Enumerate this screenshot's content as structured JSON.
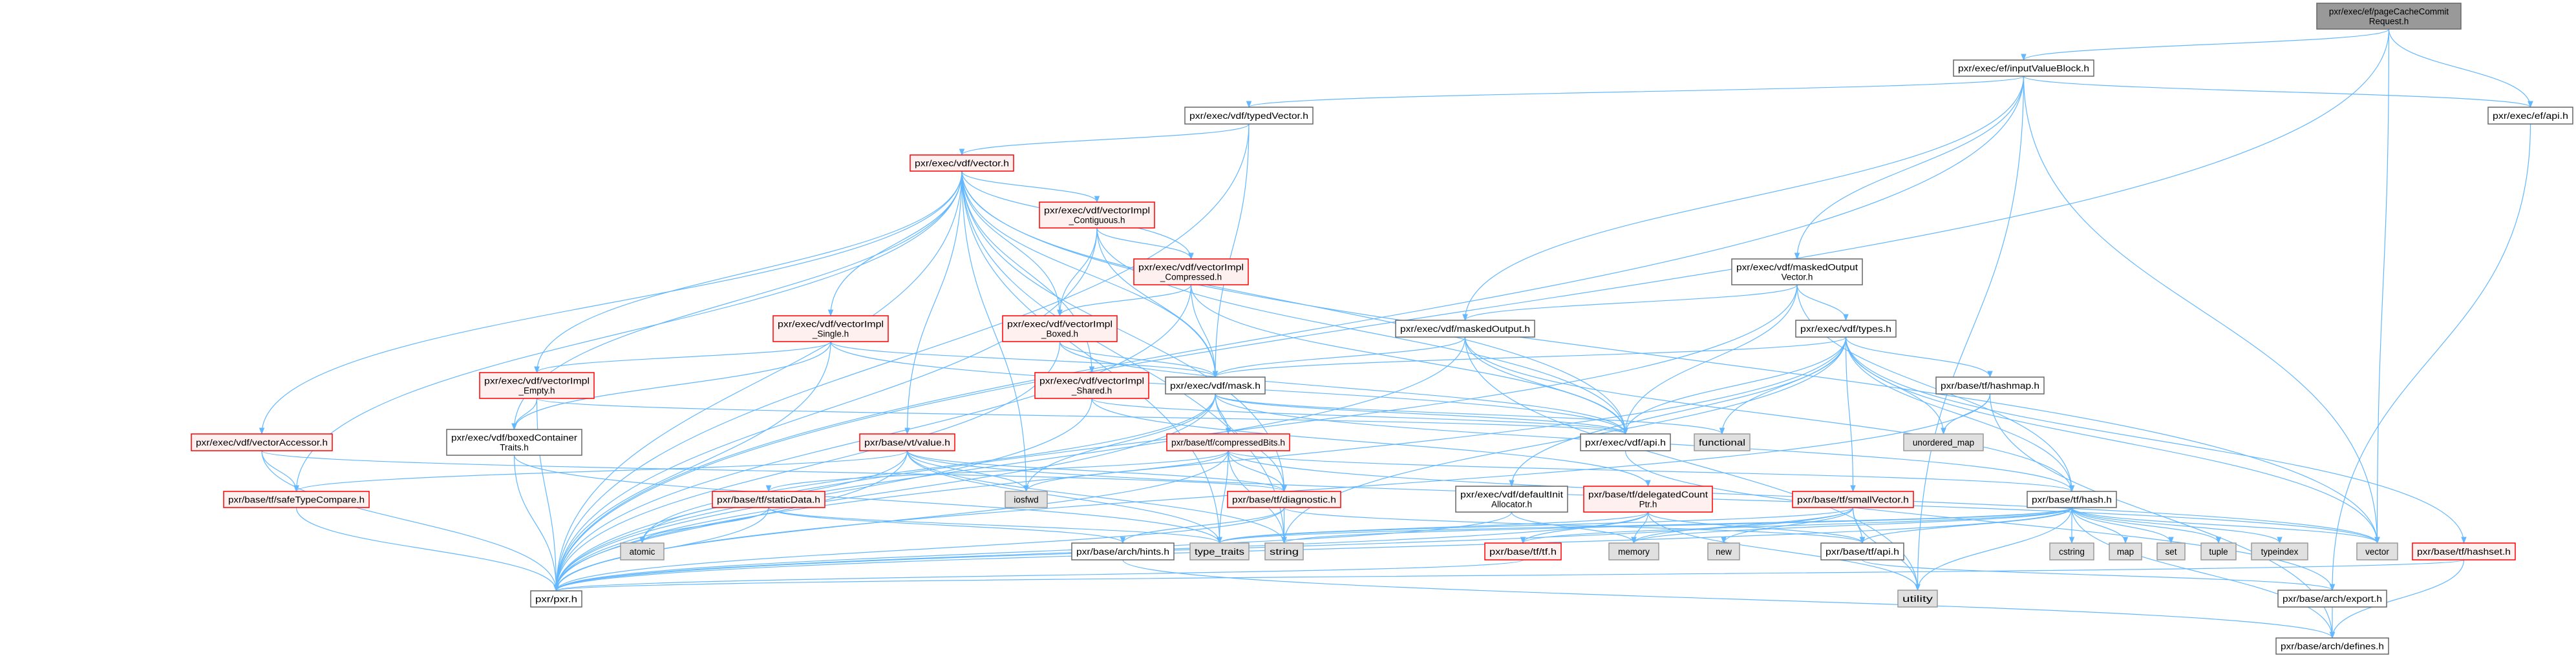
{
  "diagram": {
    "type": "include-dependency-graph",
    "colors": {
      "edge": "#63b8ff",
      "root_fill": "#999999",
      "root_border": "#666666",
      "normal_fill": "#ffffff",
      "normal_border": "#666666",
      "incomplete_fill": "#fff0f0",
      "incomplete_border": "#ff0000",
      "external_fill": "#e0e0e0",
      "external_border": "#999999"
    },
    "nodes": [
      {
        "id": "pageCache",
        "kind": "root",
        "lines": [
          "pxr/exec/ef/pageCacheCommit",
          "Request.h"
        ]
      },
      {
        "id": "inputValueBlock",
        "kind": "normal",
        "lines": [
          "pxr/exec/ef/inputValueBlock.h"
        ]
      },
      {
        "id": "efApi",
        "kind": "normal",
        "lines": [
          "pxr/exec/ef/api.h"
        ]
      },
      {
        "id": "typedVector",
        "kind": "normal",
        "lines": [
          "pxr/exec/vdf/typedVector.h"
        ]
      },
      {
        "id": "vectorH",
        "kind": "incomplete",
        "lines": [
          "pxr/exec/vdf/vector.h"
        ]
      },
      {
        "id": "contiguous",
        "kind": "incomplete",
        "lines": [
          "pxr/exec/vdf/vectorImpl",
          "_Contiguous.h"
        ]
      },
      {
        "id": "compressed",
        "kind": "incomplete",
        "lines": [
          "pxr/exec/vdf/vectorImpl",
          "_Compressed.h"
        ]
      },
      {
        "id": "single",
        "kind": "incomplete",
        "lines": [
          "pxr/exec/vdf/vectorImpl",
          "_Single.h"
        ]
      },
      {
        "id": "boxed",
        "kind": "incomplete",
        "lines": [
          "pxr/exec/vdf/vectorImpl",
          "_Boxed.h"
        ]
      },
      {
        "id": "empty",
        "kind": "incomplete",
        "lines": [
          "pxr/exec/vdf/vectorImpl",
          "_Empty.h"
        ]
      },
      {
        "id": "shared",
        "kind": "incomplete",
        "lines": [
          "pxr/exec/vdf/vectorImpl",
          "_Shared.h"
        ]
      },
      {
        "id": "maskedOutputVector",
        "kind": "normal",
        "lines": [
          "pxr/exec/vdf/maskedOutput",
          "Vector.h"
        ]
      },
      {
        "id": "maskedOutput",
        "kind": "normal",
        "lines": [
          "pxr/exec/vdf/maskedOutput.h"
        ]
      },
      {
        "id": "types",
        "kind": "normal",
        "lines": [
          "pxr/exec/vdf/types.h"
        ]
      },
      {
        "id": "mask",
        "kind": "normal",
        "lines": [
          "pxr/exec/vdf/mask.h"
        ]
      },
      {
        "id": "hashmap",
        "kind": "normal",
        "lines": [
          "pxr/base/tf/hashmap.h"
        ]
      },
      {
        "id": "boxedTraits",
        "kind": "normal",
        "lines": [
          "pxr/exec/vdf/boxedContainer",
          "Traits.h"
        ]
      },
      {
        "id": "vectorAccessor",
        "kind": "incomplete",
        "lines": [
          "pxr/exec/vdf/vectorAccessor.h"
        ]
      },
      {
        "id": "value",
        "kind": "incomplete",
        "lines": [
          "pxr/base/vt/value.h"
        ]
      },
      {
        "id": "compressedBits",
        "kind": "incomplete",
        "lines": [
          "pxr/base/tf/compressedBits.h"
        ]
      },
      {
        "id": "vdfApi",
        "kind": "normal",
        "lines": [
          "pxr/exec/vdf/api.h"
        ]
      },
      {
        "id": "functional",
        "kind": "external",
        "lines": [
          "functional"
        ]
      },
      {
        "id": "unorderedMap",
        "kind": "external",
        "lines": [
          "unordered_map"
        ]
      },
      {
        "id": "safeTypeCompare",
        "kind": "incomplete",
        "lines": [
          "pxr/base/tf/safeTypeCompare.h"
        ]
      },
      {
        "id": "staticData",
        "kind": "incomplete",
        "lines": [
          "pxr/base/tf/staticData.h"
        ]
      },
      {
        "id": "iosfwd",
        "kind": "external",
        "lines": [
          "iosfwd"
        ]
      },
      {
        "id": "diagnostic",
        "kind": "incomplete",
        "lines": [
          "pxr/base/tf/diagnostic.h"
        ]
      },
      {
        "id": "defaultInit",
        "kind": "normal",
        "lines": [
          "pxr/exec/vdf/defaultInit",
          "Allocator.h"
        ]
      },
      {
        "id": "delegated",
        "kind": "incomplete",
        "lines": [
          "pxr/base/tf/delegatedCount",
          "Ptr.h"
        ]
      },
      {
        "id": "smallVector",
        "kind": "incomplete",
        "lines": [
          "pxr/base/tf/smallVector.h"
        ]
      },
      {
        "id": "hash",
        "kind": "normal",
        "lines": [
          "pxr/base/tf/hash.h"
        ]
      },
      {
        "id": "atomic",
        "kind": "external",
        "lines": [
          "atomic"
        ]
      },
      {
        "id": "hints",
        "kind": "normal",
        "lines": [
          "pxr/base/arch/hints.h"
        ]
      },
      {
        "id": "typeTraits",
        "kind": "external",
        "lines": [
          "type_traits"
        ]
      },
      {
        "id": "string",
        "kind": "external",
        "lines": [
          "string"
        ]
      },
      {
        "id": "tfH",
        "kind": "incomplete",
        "lines": [
          "pxr/base/tf/tf.h"
        ]
      },
      {
        "id": "memory",
        "kind": "external",
        "lines": [
          "memory"
        ]
      },
      {
        "id": "new",
        "kind": "external",
        "lines": [
          "new"
        ]
      },
      {
        "id": "tfApi",
        "kind": "normal",
        "lines": [
          "pxr/base/tf/api.h"
        ]
      },
      {
        "id": "cstring",
        "kind": "external",
        "lines": [
          "cstring"
        ]
      },
      {
        "id": "map",
        "kind": "external",
        "lines": [
          "map"
        ]
      },
      {
        "id": "set",
        "kind": "external",
        "lines": [
          "set"
        ]
      },
      {
        "id": "tuple",
        "kind": "external",
        "lines": [
          "tuple"
        ]
      },
      {
        "id": "typeindex",
        "kind": "external",
        "lines": [
          "typeindex"
        ]
      },
      {
        "id": "vectorStd",
        "kind": "external",
        "lines": [
          "vector"
        ]
      },
      {
        "id": "hashset",
        "kind": "incomplete",
        "lines": [
          "pxr/base/tf/hashset.h"
        ]
      },
      {
        "id": "pxr",
        "kind": "normal",
        "lines": [
          "pxr/pxr.h"
        ]
      },
      {
        "id": "utility",
        "kind": "external",
        "lines": [
          "utility"
        ]
      },
      {
        "id": "export",
        "kind": "normal",
        "lines": [
          "pxr/base/arch/export.h"
        ]
      },
      {
        "id": "defines",
        "kind": "normal",
        "lines": [
          "pxr/base/arch/defines.h"
        ]
      }
    ],
    "edges": [
      [
        "pageCache",
        "inputValueBlock"
      ],
      [
        "pageCache",
        "efApi"
      ],
      [
        "pageCache",
        "vectorStd"
      ],
      [
        "pageCache",
        "pxr"
      ],
      [
        "inputValueBlock",
        "typedVector"
      ],
      [
        "inputValueBlock",
        "maskedOutputVector"
      ],
      [
        "inputValueBlock",
        "maskedOutput"
      ],
      [
        "inputValueBlock",
        "efApi"
      ],
      [
        "inputValueBlock",
        "pxr"
      ],
      [
        "inputValueBlock",
        "vectorStd"
      ],
      [
        "inputValueBlock",
        "utility"
      ],
      [
        "efApi",
        "export"
      ],
      [
        "typedVector",
        "vectorH"
      ],
      [
        "typedVector",
        "mask"
      ],
      [
        "typedVector",
        "pxr"
      ],
      [
        "vectorH",
        "contiguous"
      ],
      [
        "vectorH",
        "compressed"
      ],
      [
        "vectorH",
        "boxed"
      ],
      [
        "vectorH",
        "single"
      ],
      [
        "vectorH",
        "empty"
      ],
      [
        "vectorH",
        "shared"
      ],
      [
        "vectorH",
        "mask"
      ],
      [
        "vectorH",
        "vdfApi"
      ],
      [
        "vectorH",
        "boxedTraits"
      ],
      [
        "vectorH",
        "vectorAccessor"
      ],
      [
        "vectorH",
        "safeTypeCompare"
      ],
      [
        "vectorH",
        "value"
      ],
      [
        "vectorH",
        "diagnostic"
      ],
      [
        "vectorH",
        "iosfwd"
      ],
      [
        "vectorH",
        "pxr"
      ],
      [
        "vectorH",
        "vectorStd"
      ],
      [
        "vectorH",
        "typeTraits"
      ],
      [
        "vectorH",
        "string"
      ],
      [
        "contiguous",
        "compressed"
      ],
      [
        "contiguous",
        "boxed"
      ],
      [
        "contiguous",
        "mask"
      ],
      [
        "contiguous",
        "vdfApi"
      ],
      [
        "contiguous",
        "pxr"
      ],
      [
        "compressed",
        "boxed"
      ],
      [
        "compressed",
        "mask"
      ],
      [
        "compressed",
        "vdfApi"
      ],
      [
        "compressed",
        "pxr"
      ],
      [
        "boxed",
        "mask"
      ],
      [
        "boxed",
        "vdfApi"
      ],
      [
        "boxed",
        "pxr"
      ],
      [
        "single",
        "empty"
      ],
      [
        "single",
        "boxedTraits"
      ],
      [
        "single",
        "mask"
      ],
      [
        "single",
        "vdfApi"
      ],
      [
        "single",
        "pxr"
      ],
      [
        "empty",
        "boxedTraits"
      ],
      [
        "empty",
        "vdfApi"
      ],
      [
        "empty",
        "pxr"
      ],
      [
        "shared",
        "delegated"
      ],
      [
        "shared",
        "vdfApi"
      ],
      [
        "shared",
        "pxr"
      ],
      [
        "maskedOutputVector",
        "maskedOutput"
      ],
      [
        "maskedOutputVector",
        "types"
      ],
      [
        "maskedOutputVector",
        "vdfApi"
      ],
      [
        "maskedOutputVector",
        "hash"
      ],
      [
        "maskedOutputVector",
        "pxr"
      ],
      [
        "maskedOutput",
        "mask"
      ],
      [
        "maskedOutput",
        "vdfApi"
      ],
      [
        "maskedOutput",
        "hash"
      ],
      [
        "maskedOutput",
        "pxr"
      ],
      [
        "maskedOutput",
        "utility"
      ],
      [
        "types",
        "mask"
      ],
      [
        "types",
        "vdfApi"
      ],
      [
        "types",
        "defaultInit"
      ],
      [
        "types",
        "smallVector"
      ],
      [
        "types",
        "hashmap"
      ],
      [
        "types",
        "hash"
      ],
      [
        "types",
        "functional"
      ],
      [
        "types",
        "unorderedMap"
      ],
      [
        "types",
        "vectorStd"
      ],
      [
        "types",
        "hashset"
      ],
      [
        "types",
        "pxr"
      ],
      [
        "types",
        "string"
      ],
      [
        "mask",
        "compressedBits"
      ],
      [
        "mask",
        "vdfApi"
      ],
      [
        "mask",
        "hash"
      ],
      [
        "mask",
        "iosfwd"
      ],
      [
        "mask",
        "pxr"
      ],
      [
        "mask",
        "diagnostic"
      ],
      [
        "mask",
        "atomic"
      ],
      [
        "mask",
        "functional"
      ],
      [
        "compressedBits",
        "staticData"
      ],
      [
        "compressedBits",
        "diagnostic"
      ],
      [
        "compressedBits",
        "iosfwd"
      ],
      [
        "compressedBits",
        "hash"
      ],
      [
        "compressedBits",
        "typeTraits"
      ],
      [
        "compressedBits",
        "string"
      ],
      [
        "compressedBits",
        "vectorStd"
      ],
      [
        "compressedBits",
        "pxr"
      ],
      [
        "value",
        "safeTypeCompare"
      ],
      [
        "value",
        "diagnostic"
      ],
      [
        "value",
        "iosfwd"
      ],
      [
        "value",
        "typeTraits"
      ],
      [
        "value",
        "string"
      ],
      [
        "value",
        "pxr"
      ],
      [
        "value",
        "atomic"
      ],
      [
        "value",
        "vectorStd"
      ],
      [
        "staticData",
        "atomic"
      ],
      [
        "staticData",
        "hints"
      ],
      [
        "staticData",
        "pxr"
      ],
      [
        "staticData",
        "typeTraits"
      ],
      [
        "diagnostic",
        "hints"
      ],
      [
        "diagnostic",
        "tfApi"
      ],
      [
        "diagnostic",
        "pxr"
      ],
      [
        "diagnostic",
        "string"
      ],
      [
        "delegated",
        "tfH"
      ],
      [
        "delegated",
        "memory"
      ],
      [
        "delegated",
        "utility"
      ],
      [
        "delegated",
        "typeTraits"
      ],
      [
        "delegated",
        "pxr"
      ],
      [
        "delegated",
        "tfApi"
      ],
      [
        "defaultInit",
        "memory"
      ],
      [
        "defaultInit",
        "pxr"
      ],
      [
        "smallVector",
        "memory"
      ],
      [
        "smallVector",
        "new"
      ],
      [
        "smallVector",
        "tfApi"
      ],
      [
        "smallVector",
        "typeTraits"
      ],
      [
        "smallVector",
        "pxr"
      ],
      [
        "smallVector",
        "utility"
      ],
      [
        "hashmap",
        "unorderedMap"
      ],
      [
        "hashmap",
        "pxr"
      ],
      [
        "hashmap",
        "defines"
      ],
      [
        "hash",
        "cstring"
      ],
      [
        "hash",
        "map"
      ],
      [
        "hash",
        "set"
      ],
      [
        "hash",
        "tuple"
      ],
      [
        "hash",
        "typeindex"
      ],
      [
        "hash",
        "vectorStd"
      ],
      [
        "hash",
        "string"
      ],
      [
        "hash",
        "memory"
      ],
      [
        "hash",
        "tfH"
      ],
      [
        "hash",
        "tfApi"
      ],
      [
        "hash",
        "utility"
      ],
      [
        "hash",
        "pxr"
      ],
      [
        "hash",
        "typeTraits"
      ],
      [
        "hash",
        "defines"
      ],
      [
        "tfH",
        "pxr"
      ],
      [
        "tfApi",
        "export"
      ],
      [
        "export",
        "defines"
      ],
      [
        "hashset",
        "defines"
      ],
      [
        "hashset",
        "pxr"
      ],
      [
        "vdfApi",
        "export"
      ],
      [
        "boxedTraits",
        "pxr"
      ],
      [
        "boxedTraits",
        "typeTraits"
      ],
      [
        "vectorAccessor",
        "safeTypeCompare"
      ],
      [
        "vectorAccessor",
        "pxr"
      ],
      [
        "vectorAccessor",
        "diagnostic"
      ],
      [
        "safeTypeCompare",
        "pxr"
      ],
      [
        "hints",
        "defines"
      ]
    ]
  }
}
